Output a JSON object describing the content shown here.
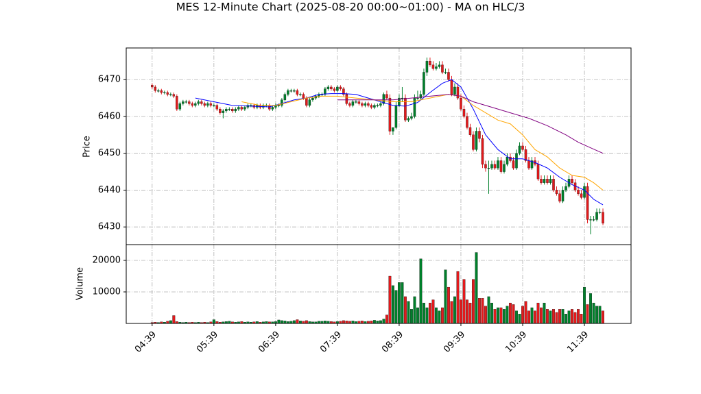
{
  "chart_data": [
    {
      "type": "candlestick",
      "title": "MES 12-Minute Chart (2025-08-20 00:00~01:00) - MA on HLC/3",
      "ylabel": "Price",
      "up_color": "#00802b",
      "down_color": "#e31a1c",
      "grid": true,
      "ylim": [
        6425.2,
        6478.6
      ],
      "yticks": [
        6430,
        6440,
        6450,
        6460,
        6470
      ],
      "xlim": [
        -8.4,
        155.1
      ],
      "open": [
        6468.5,
        6468,
        6467,
        6467,
        6466.5,
        6466.5,
        6466,
        6466,
        6465.5,
        6462,
        6463.5,
        6464,
        6464,
        6463.5,
        6463,
        6463.5,
        6464,
        6463.5,
        6463,
        6463.5,
        6463,
        6463,
        6462,
        6461,
        6461.5,
        6462,
        6462,
        6461.5,
        6462,
        6462.5,
        6462,
        6462.5,
        6463,
        6463,
        6462.5,
        6463,
        6462.5,
        6463,
        6463,
        6462,
        6462.5,
        6463,
        6463,
        6464.5,
        6466,
        6467,
        6467,
        6467,
        6466,
        6466,
        6465,
        6463,
        6464.5,
        6465,
        6465.5,
        6466,
        6466,
        6467.5,
        6468,
        6467.5,
        6467,
        6468,
        6467.5,
        6466,
        6463.5,
        6463,
        6464,
        6464,
        6463.5,
        6463,
        6463.5,
        6463,
        6462.5,
        6463,
        6463,
        6463.5,
        6466,
        6465,
        6456,
        6457,
        6463,
        6465,
        6465,
        6459,
        6459.5,
        6460,
        6465,
        6465,
        6466,
        6472,
        6475,
        6474,
        6473,
        6473.5,
        6474,
        6472,
        6472,
        6470,
        6466,
        6468,
        6465,
        6462,
        6460,
        6457,
        6455,
        6451,
        6456,
        6454,
        6447,
        6446,
        6446,
        6447,
        6446,
        6448,
        6445,
        6447,
        6449,
        6448,
        6446,
        6450,
        6452,
        6451,
        6448,
        6446,
        6448,
        6447,
        6443,
        6442,
        6443,
        6442,
        6443,
        6440,
        6439,
        6437,
        6440,
        6441,
        6443,
        6442,
        6440,
        6439,
        6438,
        6441,
        6432,
        6432,
        6432,
        6434,
        6434
      ],
      "high": [
        6469,
        6468.5,
        6467.5,
        6467.5,
        6467,
        6467,
        6466.5,
        6466.5,
        6466,
        6464,
        6464.5,
        6464.5,
        6464.5,
        6464,
        6464,
        6464.5,
        6464.5,
        6464,
        6464,
        6464,
        6463.5,
        6463.5,
        6462.5,
        6462,
        6462.5,
        6462.5,
        6462.5,
        6462.5,
        6463,
        6463,
        6463,
        6463.5,
        6463.5,
        6463.5,
        6463.5,
        6463.5,
        6463.5,
        6463.5,
        6463.5,
        6463,
        6463.5,
        6463.5,
        6465,
        6466.5,
        6467.5,
        6467.5,
        6467.5,
        6467.5,
        6466.5,
        6466.5,
        6465.5,
        6465,
        6465.5,
        6466,
        6466.5,
        6466.5,
        6468,
        6468.5,
        6468.5,
        6468,
        6468.5,
        6468.5,
        6468,
        6466.5,
        6464,
        6464.5,
        6464.5,
        6464.5,
        6464,
        6464,
        6464,
        6463.5,
        6463.5,
        6463.5,
        6464,
        6466.5,
        6467,
        6466,
        6457,
        6464,
        6466,
        6468,
        6466,
        6460,
        6461,
        6466,
        6467,
        6467,
        6473,
        6476,
        6476,
        6475,
        6474.5,
        6475,
        6475,
        6473,
        6473,
        6471,
        6469,
        6469,
        6466,
        6463,
        6461,
        6458,
        6456,
        6457,
        6457,
        6455,
        6448,
        6448,
        6448,
        6448,
        6449,
        6449,
        6448,
        6450,
        6450,
        6449,
        6451,
        6453,
        6453,
        6452,
        6449,
        6449,
        6449,
        6448,
        6444,
        6444,
        6444,
        6444,
        6444,
        6441,
        6440,
        6441,
        6442,
        6444,
        6444,
        6443,
        6441,
        6440,
        6442,
        6442,
        6433,
        6433,
        6435,
        6435,
        6435
      ],
      "low": [
        6467.5,
        6466.5,
        6466.5,
        6466,
        6466,
        6465.5,
        6465.5,
        6465,
        6461.5,
        6461.5,
        6463,
        6463.5,
        6463,
        6462.5,
        6462.5,
        6463,
        6463,
        6462.5,
        6462.5,
        6462.5,
        6462.5,
        6461.5,
        6460.5,
        6459.5,
        6461,
        6461.5,
        6461,
        6461,
        6461.5,
        6461.5,
        6461.5,
        6462,
        6462.5,
        6462,
        6462,
        6462,
        6462,
        6462.5,
        6461.5,
        6461.5,
        6462,
        6462.5,
        6462.5,
        6464,
        6465.5,
        6466.5,
        6466.5,
        6465.5,
        6465.5,
        6464.5,
        6462.5,
        6462.5,
        6464,
        6464.5,
        6465,
        6465.5,
        6465.5,
        6467,
        6467,
        6466.5,
        6466.5,
        6467,
        6465.5,
        6463,
        6462.5,
        6462.5,
        6463.5,
        6463,
        6462.5,
        6462.5,
        6462.5,
        6462,
        6462,
        6462.5,
        6462.5,
        6463,
        6464.5,
        6455,
        6455,
        6456.5,
        6462.5,
        6464,
        6458.5,
        6458.5,
        6459,
        6459.5,
        6464.5,
        6464.5,
        6465.5,
        6471,
        6473.5,
        6472.5,
        6472.5,
        6473,
        6471.5,
        6471.5,
        6469.5,
        6465.5,
        6465.5,
        6464.5,
        6461.5,
        6459.5,
        6456.5,
        6454.5,
        6450.5,
        6450.5,
        6453,
        6446,
        6445,
        6439,
        6445.5,
        6445.5,
        6445.5,
        6444.5,
        6444.5,
        6446.5,
        6447.5,
        6445.5,
        6445.5,
        6449.5,
        6450.5,
        6447.5,
        6445.5,
        6445.5,
        6446.5,
        6442.5,
        6441.5,
        6441.5,
        6441.5,
        6441.5,
        6439.5,
        6438.5,
        6436.5,
        6436.5,
        6439.5,
        6440.5,
        6441.5,
        6439.5,
        6438.5,
        6437.5,
        6437.5,
        6431,
        6428,
        6431.5,
        6431.5,
        6433.5,
        6430.5
      ],
      "close": [
        6468,
        6467,
        6467,
        6466.5,
        6466.5,
        6466,
        6466,
        6465.5,
        6462,
        6463.5,
        6464,
        6464,
        6463.5,
        6463,
        6463.5,
        6464,
        6463.5,
        6463,
        6463.5,
        6463,
        6463,
        6462,
        6461,
        6461.5,
        6462,
        6462,
        6461.5,
        6462,
        6462.5,
        6462,
        6462.5,
        6463,
        6463,
        6462.5,
        6463,
        6462.5,
        6463,
        6463,
        6462,
        6462.5,
        6463,
        6463,
        6464.5,
        6466,
        6467,
        6467,
        6467,
        6466,
        6466,
        6465,
        6463,
        6464.5,
        6465,
        6465.5,
        6466,
        6466,
        6467.5,
        6468,
        6467.5,
        6467,
        6468,
        6467.5,
        6466,
        6463.5,
        6463,
        6464,
        6464,
        6463.5,
        6463,
        6463.5,
        6463,
        6462.5,
        6463,
        6463,
        6463.5,
        6466,
        6465,
        6456,
        6457,
        6463,
        6465,
        6465,
        6459,
        6459.5,
        6460,
        6465,
        6465,
        6466,
        6472,
        6475,
        6474,
        6473,
        6473.5,
        6474,
        6472,
        6472,
        6470,
        6466,
        6468,
        6465,
        6462,
        6460,
        6457,
        6455,
        6451,
        6456,
        6454,
        6447,
        6446,
        6446,
        6447,
        6446,
        6448,
        6445,
        6447,
        6449,
        6448,
        6446,
        6450,
        6452,
        6451,
        6448,
        6446,
        6448,
        6447,
        6443,
        6442,
        6443,
        6442,
        6443,
        6440,
        6439,
        6437,
        6440,
        6441,
        6443,
        6442,
        6440,
        6439,
        6438,
        6441,
        6432,
        6432,
        6432,
        6434,
        6434,
        6431
      ],
      "lines": [
        {
          "color": "#0000ff",
          "x": [
            14,
            20,
            26,
            32,
            38,
            42,
            46,
            50,
            54,
            58,
            62,
            66,
            70,
            74,
            78,
            82,
            86,
            90,
            94,
            97,
            100,
            104,
            108,
            112,
            116,
            120,
            124,
            128,
            132,
            136,
            140,
            143,
            146
          ],
          "values": [
            6465,
            6464,
            6463,
            6462.8,
            6462.6,
            6463.5,
            6464.5,
            6465,
            6466,
            6466.2,
            6466.2,
            6466,
            6465,
            6464,
            6463,
            6462.8,
            6463.8,
            6466.5,
            6469,
            6470,
            6468,
            6462,
            6455,
            6451,
            6448.5,
            6448.5,
            6447.5,
            6446,
            6443.5,
            6441.5,
            6440,
            6437.5,
            6436
          ]
        },
        {
          "color": "#ffa500",
          "x": [
            29,
            35,
            40,
            45,
            50,
            55,
            60,
            66,
            72,
            78,
            84,
            90,
            96,
            100,
            104,
            108,
            112,
            116,
            120,
            124,
            128,
            132,
            136,
            140,
            143,
            146
          ],
          "values": [
            6464,
            6463,
            6463,
            6464,
            6465,
            6465.5,
            6465.5,
            6465,
            6464.5,
            6464,
            6464,
            6465,
            6466,
            6465.5,
            6463,
            6461,
            6459,
            6458,
            6455,
            6451,
            6449,
            6446,
            6444,
            6443.5,
            6442,
            6440
          ]
        },
        {
          "color": "#800080",
          "x": [
            60,
            66,
            72,
            78,
            84,
            90,
            96,
            100,
            104,
            110,
            116,
            122,
            128,
            134,
            138,
            142,
            146
          ],
          "values": [
            6464.5,
            6464.5,
            6464.5,
            6464.5,
            6465,
            6465.5,
            6466,
            6465.5,
            6464,
            6462.5,
            6461,
            6459.5,
            6457.5,
            6455,
            6453,
            6451.5,
            6450
          ]
        }
      ]
    },
    {
      "type": "volume",
      "ylabel": "Volume",
      "grid": true,
      "ylim": [
        0,
        25000
      ],
      "yticks": [
        10000,
        20000
      ],
      "xlim": [
        -8.4,
        155.1
      ],
      "xticks": [
        {
          "value": 0,
          "label": "04:39"
        },
        {
          "value": 20,
          "label": "05:39"
        },
        {
          "value": 40,
          "label": "06:39"
        },
        {
          "value": 60,
          "label": "07:39"
        },
        {
          "value": 80,
          "label": "08:39"
        },
        {
          "value": 100,
          "label": "09:39"
        },
        {
          "value": 120,
          "label": "10:39"
        },
        {
          "value": 140,
          "label": "11:39"
        }
      ],
      "values": [
        300,
        400,
        300,
        500,
        400,
        700,
        900,
        2500,
        600,
        400,
        300,
        400,
        300,
        400,
        300,
        400,
        300,
        400,
        300,
        500,
        1200,
        600,
        400,
        500,
        600,
        700,
        500,
        400,
        500,
        600,
        400,
        500,
        400,
        500,
        600,
        400,
        500,
        600,
        500,
        500,
        600,
        1100,
        900,
        800,
        600,
        700,
        900,
        1200,
        800,
        700,
        900,
        600,
        500,
        500,
        700,
        700,
        800,
        700,
        600,
        500,
        600,
        700,
        900,
        800,
        700,
        800,
        600,
        700,
        800,
        600,
        700,
        800,
        1000,
        800,
        900,
        1400,
        2700,
        15000,
        12000,
        10500,
        13000,
        13000,
        8500,
        7000,
        4500,
        8500,
        5000,
        20500,
        6500,
        5000,
        6500,
        7500,
        5000,
        4000,
        5000,
        17000,
        11500,
        7000,
        8500,
        16500,
        7500,
        14000,
        7500,
        6500,
        14000,
        22500,
        8000,
        8000,
        5500,
        8500,
        6500,
        4500,
        5000,
        5000,
        4500,
        5500,
        6500,
        6000,
        4000,
        3000,
        5500,
        7000,
        4000,
        5000,
        4000,
        6500,
        5000,
        6500,
        4500,
        4000,
        4500,
        3500,
        4500,
        4500,
        3000,
        4000,
        4500,
        3500,
        4500,
        3000,
        11500,
        6000,
        9500,
        6500,
        5500,
        5500,
        4000
      ]
    }
  ]
}
